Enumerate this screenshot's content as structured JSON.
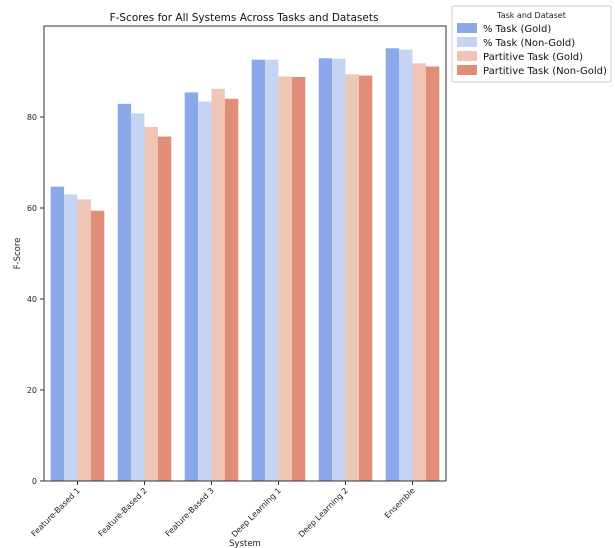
{
  "chart_data": {
    "type": "bar",
    "title": "F-Scores for All Systems Across Tasks and Datasets",
    "xlabel": "System",
    "ylabel": "F-Score",
    "categories": [
      "Feature-Based 1",
      "Feature-Based 2",
      "Feature-Based 3",
      "Deep Learning 1",
      "Deep Learning 2",
      "Ensemble"
    ],
    "ylim": [
      0,
      100
    ],
    "yticks": [
      0,
      20,
      40,
      60,
      80
    ],
    "grid": false,
    "legend": {
      "title": "Task and Dataset",
      "placement": "outside-top-right"
    },
    "series": [
      {
        "name": "% Task (Gold)",
        "color": "#8aa8ea",
        "values": [
          64.7,
          82.9,
          85.4,
          92.6,
          92.9,
          95.1
        ]
      },
      {
        "name": "% Task (Non-Gold)",
        "color": "#c5d4f2",
        "values": [
          63.0,
          80.8,
          83.4,
          92.6,
          92.8,
          94.8
        ]
      },
      {
        "name": "Partitive Task (Gold)",
        "color": "#efc6b5",
        "values": [
          61.9,
          77.8,
          86.2,
          88.9,
          89.4,
          91.8
        ]
      },
      {
        "name": "Partitive Task (Non-Gold)",
        "color": "#e08e78",
        "values": [
          59.4,
          75.7,
          84.0,
          88.8,
          89.1,
          91.1
        ]
      }
    ]
  }
}
